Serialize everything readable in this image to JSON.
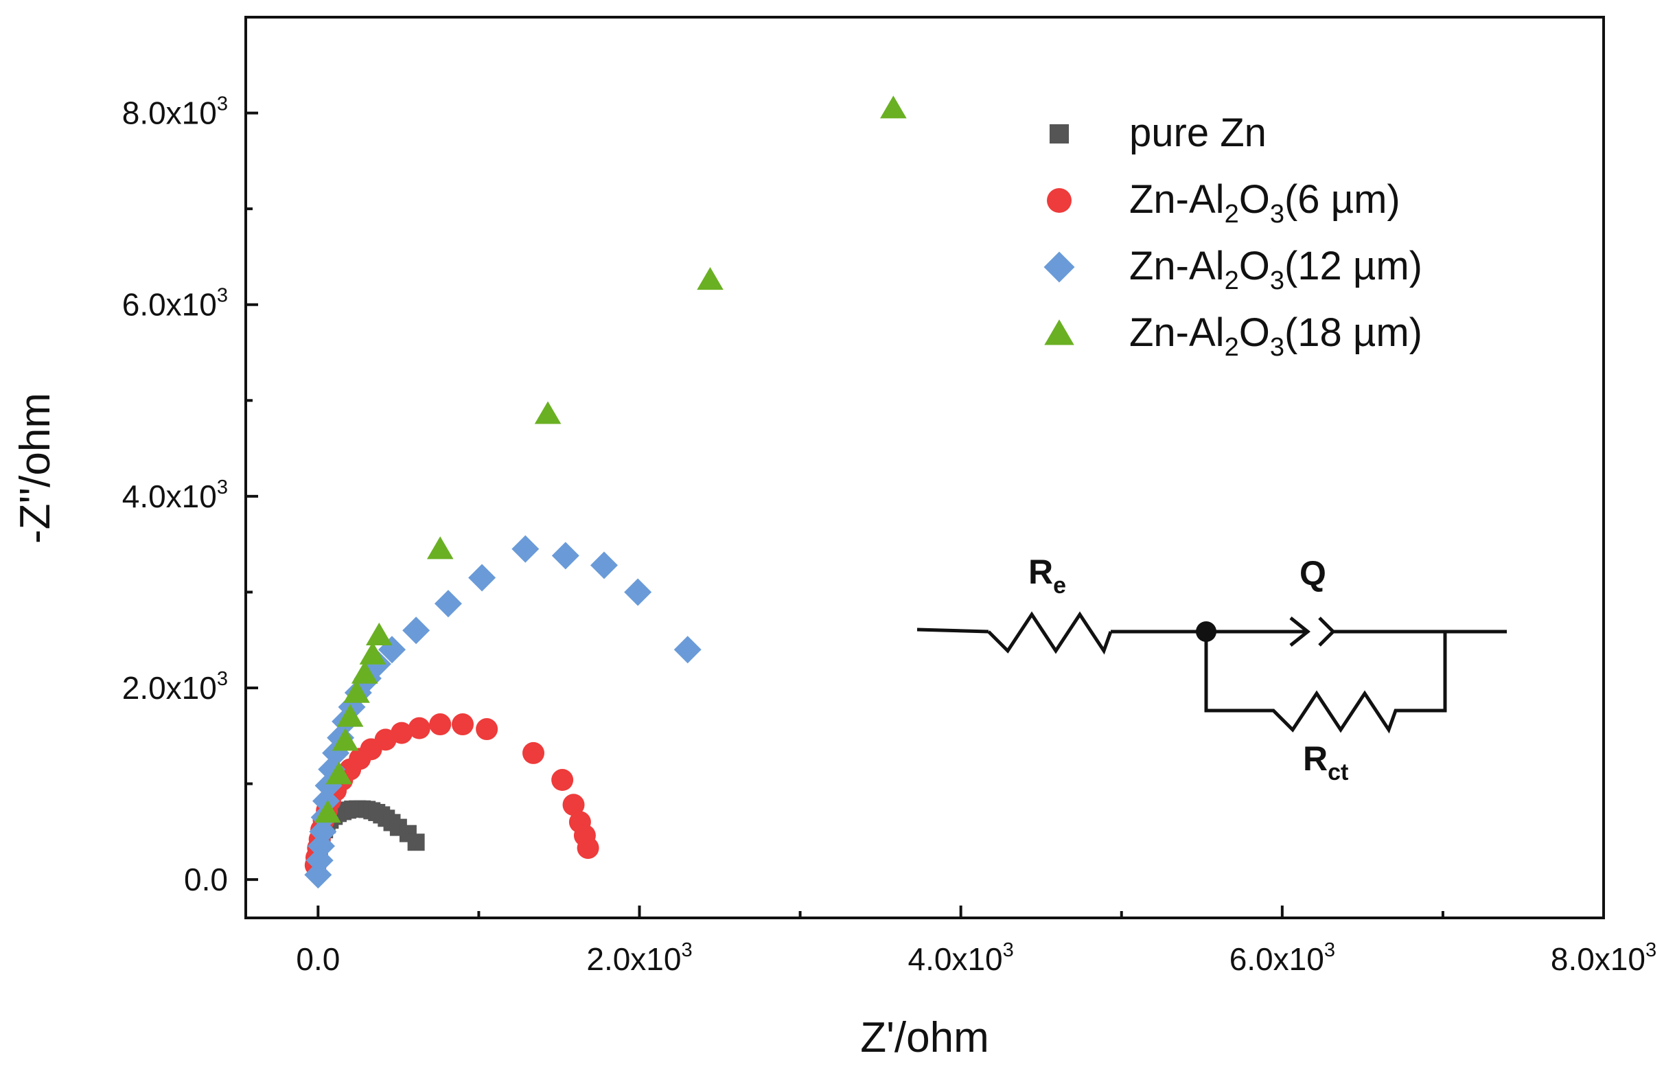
{
  "chart_data": {
    "type": "scatter",
    "xlabel": "Z'/ohm",
    "ylabel": "-Z''/ohm",
    "xlim": [
      -450,
      8000
    ],
    "ylim": [
      -400,
      9000
    ],
    "x_ticks": [
      {
        "value": 0,
        "mantissa": "0.0",
        "exp": ""
      },
      {
        "value": 2000,
        "mantissa": "2.0x10",
        "exp": "3"
      },
      {
        "value": 4000,
        "mantissa": "4.0x10",
        "exp": "3"
      },
      {
        "value": 6000,
        "mantissa": "6.0x10",
        "exp": "3"
      },
      {
        "value": 8000,
        "mantissa": "8.0x10",
        "exp": "3"
      }
    ],
    "x_minor_ticks": [
      1000,
      3000,
      5000,
      7000
    ],
    "y_ticks": [
      {
        "value": 0,
        "mantissa": "0.0",
        "exp": ""
      },
      {
        "value": 2000,
        "mantissa": "2.0x10",
        "exp": "3"
      },
      {
        "value": 4000,
        "mantissa": "4.0x10",
        "exp": "3"
      },
      {
        "value": 6000,
        "mantissa": "6.0x10",
        "exp": "3"
      },
      {
        "value": 8000,
        "mantissa": "8.0x10",
        "exp": "3"
      }
    ],
    "y_minor_ticks": [
      1000,
      3000,
      5000,
      7000
    ],
    "legend_position": "top-right",
    "series": [
      {
        "name": "pure Zn",
        "label_parts": [
          "pure Zn"
        ],
        "marker": "square",
        "color": "#555555",
        "points": [
          [
            -10,
            120
          ],
          [
            -5,
            200
          ],
          [
            0,
            280
          ],
          [
            8,
            340
          ],
          [
            15,
            400
          ],
          [
            25,
            460
          ],
          [
            40,
            520
          ],
          [
            55,
            570
          ],
          [
            75,
            620
          ],
          [
            100,
            660
          ],
          [
            125,
            690
          ],
          [
            155,
            710
          ],
          [
            185,
            725
          ],
          [
            215,
            735
          ],
          [
            245,
            738
          ],
          [
            275,
            737
          ],
          [
            305,
            732
          ],
          [
            335,
            718
          ],
          [
            365,
            700
          ],
          [
            395,
            675
          ],
          [
            425,
            640
          ],
          [
            460,
            595
          ],
          [
            500,
            545
          ],
          [
            560,
            480
          ],
          [
            610,
            390
          ]
        ]
      },
      {
        "name": "Zn-Al2O3(6 µm)",
        "label_parts": [
          "Zn-Al",
          "2",
          "O",
          "3",
          "(6 µm)"
        ],
        "marker": "circle",
        "color": "#EE3B3B",
        "points": [
          [
            -15,
            150
          ],
          [
            -10,
            230
          ],
          [
            0,
            330
          ],
          [
            10,
            420
          ],
          [
            20,
            520
          ],
          [
            35,
            620
          ],
          [
            55,
            720
          ],
          [
            75,
            820
          ],
          [
            110,
            930
          ],
          [
            150,
            1040
          ],
          [
            200,
            1150
          ],
          [
            260,
            1260
          ],
          [
            330,
            1360
          ],
          [
            420,
            1460
          ],
          [
            520,
            1530
          ],
          [
            630,
            1580
          ],
          [
            760,
            1620
          ],
          [
            900,
            1620
          ],
          [
            1050,
            1570
          ],
          [
            1340,
            1320
          ],
          [
            1520,
            1040
          ],
          [
            1590,
            780
          ],
          [
            1630,
            600
          ],
          [
            1660,
            460
          ],
          [
            1680,
            330
          ]
        ]
      },
      {
        "name": "Zn-Al2O3(12 µm)",
        "label_parts": [
          "Zn-Al",
          "2",
          "O",
          "3",
          "(12 µm)"
        ],
        "marker": "diamond",
        "color": "#6A9BD8",
        "points": [
          [
            0,
            50
          ],
          [
            10,
            200
          ],
          [
            20,
            350
          ],
          [
            30,
            500
          ],
          [
            40,
            650
          ],
          [
            50,
            820
          ],
          [
            65,
            980
          ],
          [
            85,
            1150
          ],
          [
            110,
            1320
          ],
          [
            140,
            1480
          ],
          [
            170,
            1650
          ],
          [
            210,
            1800
          ],
          [
            250,
            1950
          ],
          [
            310,
            2100
          ],
          [
            370,
            2250
          ],
          [
            460,
            2400
          ],
          [
            610,
            2600
          ],
          [
            810,
            2880
          ],
          [
            1020,
            3150
          ],
          [
            1290,
            3450
          ],
          [
            1540,
            3380
          ],
          [
            1780,
            3280
          ],
          [
            1990,
            3000
          ],
          [
            2300,
            2400
          ]
        ]
      },
      {
        "name": "Zn-Al2O3(18 µm)",
        "label_parts": [
          "Zn-Al",
          "2",
          "O",
          "3",
          "(18 µm)"
        ],
        "marker": "triangle",
        "color": "#6AB023",
        "points": [
          [
            60,
            700
          ],
          [
            130,
            1100
          ],
          [
            170,
            1450
          ],
          [
            200,
            1700
          ],
          [
            240,
            1950
          ],
          [
            290,
            2150
          ],
          [
            340,
            2350
          ],
          [
            380,
            2550
          ],
          [
            760,
            3450
          ],
          [
            1430,
            4860
          ],
          [
            2440,
            6260
          ],
          [
            3580,
            8050
          ]
        ]
      }
    ]
  },
  "circuit": {
    "resistor_label": "R",
    "resistor_sub": "e",
    "cpe_label": "Q",
    "ct_label": "R",
    "ct_sub": "ct"
  }
}
